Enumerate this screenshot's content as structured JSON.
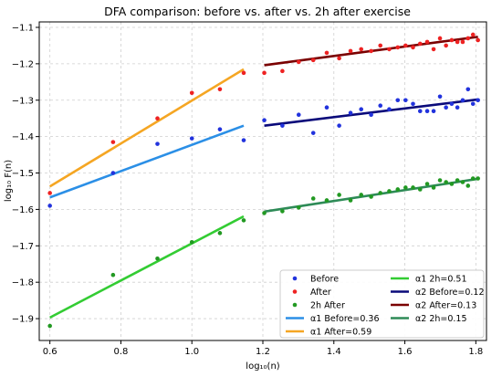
{
  "chart_data": {
    "type": "scatter",
    "title": "DFA comparison: before vs. after vs. 2h after exercise",
    "xlabel": "log₁₀(n)",
    "ylabel": "log₁₀ F(n)",
    "xlim": [
      0.57,
      1.83
    ],
    "ylim": [
      -1.96,
      -1.085
    ],
    "xticks": [
      0.6,
      0.8,
      1.0,
      1.2,
      1.4,
      1.6,
      1.8
    ],
    "xtick_labels": [
      "0.6",
      "0.8",
      "1.0",
      "1.2",
      "1.4",
      "1.6",
      "1.8"
    ],
    "yticks": [
      -1.9,
      -1.8,
      -1.7,
      -1.6,
      -1.5,
      -1.4,
      -1.3,
      -1.2,
      -1.1
    ],
    "ytick_labels": [
      "−1.9",
      "−1.8",
      "−1.7",
      "−1.6",
      "−1.5",
      "−1.4",
      "−1.3",
      "−1.2",
      "−1.1"
    ],
    "grid": true,
    "legend_position": "lower-right",
    "scatter_series": [
      {
        "name": "Before",
        "color": "#2233dd",
        "points": [
          [
            0.6,
            -1.59
          ],
          [
            0.778,
            -1.5
          ],
          [
            0.903,
            -1.42
          ],
          [
            1.0,
            -1.405
          ],
          [
            1.079,
            -1.38
          ],
          [
            1.146,
            -1.41
          ],
          [
            1.204,
            -1.355
          ],
          [
            1.255,
            -1.37
          ],
          [
            1.301,
            -1.34
          ],
          [
            1.342,
            -1.39
          ],
          [
            1.38,
            -1.32
          ],
          [
            1.415,
            -1.37
          ],
          [
            1.447,
            -1.335
          ],
          [
            1.477,
            -1.325
          ],
          [
            1.505,
            -1.34
          ],
          [
            1.531,
            -1.315
          ],
          [
            1.556,
            -1.325
          ],
          [
            1.58,
            -1.3
          ],
          [
            1.602,
            -1.3
          ],
          [
            1.623,
            -1.31
          ],
          [
            1.643,
            -1.33
          ],
          [
            1.663,
            -1.33
          ],
          [
            1.681,
            -1.33
          ],
          [
            1.699,
            -1.29
          ],
          [
            1.716,
            -1.32
          ],
          [
            1.732,
            -1.31
          ],
          [
            1.748,
            -1.32
          ],
          [
            1.763,
            -1.3
          ],
          [
            1.778,
            -1.27
          ],
          [
            1.792,
            -1.31
          ],
          [
            1.806,
            -1.3
          ]
        ]
      },
      {
        "name": "After",
        "color": "#ee2222",
        "points": [
          [
            0.6,
            -1.555
          ],
          [
            0.778,
            -1.415
          ],
          [
            0.903,
            -1.35
          ],
          [
            1.0,
            -1.28
          ],
          [
            1.079,
            -1.27
          ],
          [
            1.146,
            -1.225
          ],
          [
            1.204,
            -1.225
          ],
          [
            1.255,
            -1.22
          ],
          [
            1.301,
            -1.195
          ],
          [
            1.342,
            -1.19
          ],
          [
            1.38,
            -1.17
          ],
          [
            1.415,
            -1.185
          ],
          [
            1.447,
            -1.165
          ],
          [
            1.477,
            -1.16
          ],
          [
            1.505,
            -1.165
          ],
          [
            1.531,
            -1.15
          ],
          [
            1.556,
            -1.16
          ],
          [
            1.58,
            -1.155
          ],
          [
            1.602,
            -1.15
          ],
          [
            1.623,
            -1.155
          ],
          [
            1.643,
            -1.145
          ],
          [
            1.663,
            -1.14
          ],
          [
            1.681,
            -1.16
          ],
          [
            1.699,
            -1.13
          ],
          [
            1.716,
            -1.15
          ],
          [
            1.732,
            -1.135
          ],
          [
            1.748,
            -1.14
          ],
          [
            1.763,
            -1.14
          ],
          [
            1.778,
            -1.13
          ],
          [
            1.792,
            -1.12
          ],
          [
            1.806,
            -1.135
          ]
        ]
      },
      {
        "name": "2h After",
        "color": "#229922",
        "points": [
          [
            0.6,
            -1.92
          ],
          [
            0.778,
            -1.78
          ],
          [
            0.903,
            -1.735
          ],
          [
            1.0,
            -1.69
          ],
          [
            1.079,
            -1.665
          ],
          [
            1.146,
            -1.63
          ],
          [
            1.204,
            -1.61
          ],
          [
            1.255,
            -1.605
          ],
          [
            1.301,
            -1.595
          ],
          [
            1.342,
            -1.57
          ],
          [
            1.38,
            -1.575
          ],
          [
            1.415,
            -1.56
          ],
          [
            1.447,
            -1.575
          ],
          [
            1.477,
            -1.56
          ],
          [
            1.505,
            -1.565
          ],
          [
            1.531,
            -1.555
          ],
          [
            1.556,
            -1.55
          ],
          [
            1.58,
            -1.545
          ],
          [
            1.602,
            -1.54
          ],
          [
            1.623,
            -1.54
          ],
          [
            1.643,
            -1.545
          ],
          [
            1.663,
            -1.53
          ],
          [
            1.681,
            -1.54
          ],
          [
            1.699,
            -1.52
          ],
          [
            1.716,
            -1.525
          ],
          [
            1.732,
            -1.53
          ],
          [
            1.748,
            -1.52
          ],
          [
            1.763,
            -1.525
          ],
          [
            1.778,
            -1.535
          ],
          [
            1.792,
            -1.515
          ],
          [
            1.806,
            -1.515
          ]
        ]
      }
    ],
    "fit_lines": [
      {
        "name": "α1 Before=0.36",
        "color": "#2b8fe6",
        "x": [
          0.6,
          1.146
        ],
        "y": [
          -1.567,
          -1.37
        ]
      },
      {
        "name": "α1 After=0.59",
        "color": "#f5a623",
        "x": [
          0.6,
          1.146
        ],
        "y": [
          -1.537,
          -1.215
        ]
      },
      {
        "name": "α1 2h=0.51",
        "color": "#33cc33",
        "x": [
          0.6,
          1.146
        ],
        "y": [
          -1.897,
          -1.619
        ]
      },
      {
        "name": "α2 Before=0.12",
        "color": "#0a0a7a",
        "x": [
          1.204,
          1.806
        ],
        "y": [
          -1.37,
          -1.298
        ]
      },
      {
        "name": "α2 After=0.13",
        "color": "#7a0000",
        "x": [
          1.204,
          1.806
        ],
        "y": [
          -1.204,
          -1.126
        ]
      },
      {
        "name": "α2 2h=0.15",
        "color": "#2e8b57",
        "x": [
          1.204,
          1.806
        ],
        "y": [
          -1.606,
          -1.516
        ]
      }
    ],
    "legend_col1": [
      {
        "kind": "dot",
        "label": "Before",
        "color": "#2233dd"
      },
      {
        "kind": "dot",
        "label": "After",
        "color": "#ee2222"
      },
      {
        "kind": "dot",
        "label": "2h After",
        "color": "#229922"
      },
      {
        "kind": "line",
        "label": "α1 Before=0.36",
        "color": "#2b8fe6"
      },
      {
        "kind": "line",
        "label": "α1 After=0.59",
        "color": "#f5a623"
      }
    ],
    "legend_col2": [
      {
        "kind": "line",
        "label": "α1 2h=0.51",
        "color": "#33cc33"
      },
      {
        "kind": "line",
        "label": "α2 Before=0.12",
        "color": "#0a0a7a"
      },
      {
        "kind": "line",
        "label": "α2 After=0.13",
        "color": "#7a0000"
      },
      {
        "kind": "line",
        "label": "α2 2h=0.15",
        "color": "#2e8b57"
      }
    ]
  }
}
